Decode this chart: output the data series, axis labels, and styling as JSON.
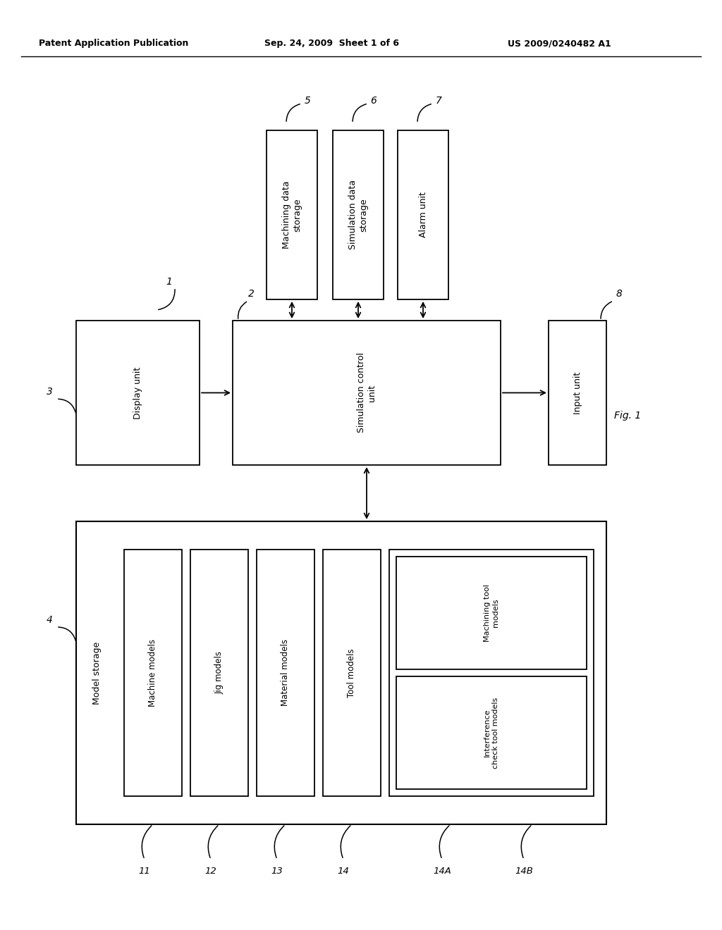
{
  "bg_color": "#ffffff",
  "header_text": "Patent Application Publication",
  "header_date": "Sep. 24, 2009  Sheet 1 of 6",
  "header_patent": "US 2009/0240482 A1",
  "fig_label": "Fig. 1",
  "label_1": "1",
  "label_2": "2",
  "label_3": "3",
  "label_4": "4",
  "label_5": "5",
  "label_6": "6",
  "label_7": "7",
  "label_8": "8",
  "label_11": "11",
  "label_12": "12",
  "label_13": "13",
  "label_14": "14",
  "label_14A": "14A",
  "label_14B": "14B",
  "box_display": "Display unit",
  "box_sim_ctrl": "Simulation control\nunit",
  "box_input": "Input unit",
  "box_mach_data": "Machining data\nstorage",
  "box_sim_data": "Simulation data\nstorage",
  "box_alarm": "Alarm unit",
  "box_model_storage": "Model storage",
  "box_machine_models": "Machine models",
  "box_jig_models": "Jig models",
  "box_material_models": "Material models",
  "box_tool_models": "Tool models",
  "box_machining_tool": "Machining tool\nmodels",
  "box_interference": "Interference\ncheck tool models"
}
